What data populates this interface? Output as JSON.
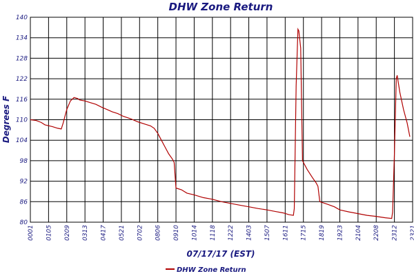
{
  "chart_data": {
    "type": "line",
    "title": "DHW Zone Return",
    "xlabel": "07/17/17 (EST)",
    "ylabel": "Degrees F",
    "ylim": [
      80,
      140
    ],
    "y_ticks": [
      80,
      86,
      92,
      98,
      104,
      110,
      116,
      122,
      128,
      134,
      140
    ],
    "x_tick_labels": [
      "0001",
      "0105",
      "0209",
      "0313",
      "0417",
      "0521",
      "0702",
      "0806",
      "0910",
      "1014",
      "1118",
      "1222",
      "1403",
      "1507",
      "1611",
      "1715",
      "1819",
      "1923",
      "2104",
      "2208",
      "2312",
      "2321"
    ],
    "grid": true,
    "legend_position": "bottom-center",
    "colors": {
      "series": "#b00000",
      "text": "#1a1a80",
      "grid": "#000000"
    },
    "series": [
      {
        "name": "DHW Zone Return",
        "points": [
          [
            0.0,
            110.0
          ],
          [
            0.3,
            109.8
          ],
          [
            0.6,
            109.2
          ],
          [
            0.8,
            108.5
          ],
          [
            1.2,
            108.0
          ],
          [
            1.5,
            107.5
          ],
          [
            1.7,
            107.3
          ],
          [
            1.8,
            109.0
          ],
          [
            1.9,
            111.0
          ],
          [
            2.0,
            113.0
          ],
          [
            2.2,
            115.5
          ],
          [
            2.4,
            116.5
          ],
          [
            2.6,
            116.2
          ],
          [
            2.7,
            115.8
          ],
          [
            3.0,
            115.5
          ],
          [
            3.3,
            115.0
          ],
          [
            3.6,
            114.5
          ],
          [
            3.9,
            113.7
          ],
          [
            4.2,
            113.0
          ],
          [
            4.5,
            112.3
          ],
          [
            4.8,
            111.8
          ],
          [
            5.1,
            111.0
          ],
          [
            5.5,
            110.3
          ],
          [
            5.9,
            109.4
          ],
          [
            6.3,
            108.7
          ],
          [
            6.6,
            108.2
          ],
          [
            6.8,
            107.5
          ],
          [
            7.0,
            106.0
          ],
          [
            7.2,
            104.0
          ],
          [
            7.4,
            102.0
          ],
          [
            7.6,
            100.0
          ],
          [
            7.8,
            98.5
          ],
          [
            7.9,
            97.5
          ],
          [
            8.0,
            90.0
          ],
          [
            8.3,
            89.5
          ],
          [
            8.6,
            88.5
          ],
          [
            9.0,
            88.0
          ],
          [
            9.5,
            87.2
          ],
          [
            10.0,
            86.7
          ],
          [
            10.5,
            86.0
          ],
          [
            11.0,
            85.5
          ],
          [
            11.5,
            85.0
          ],
          [
            12.0,
            84.5
          ],
          [
            12.5,
            84.0
          ],
          [
            13.0,
            83.6
          ],
          [
            13.5,
            83.1
          ],
          [
            13.9,
            82.7
          ],
          [
            14.2,
            82.2
          ],
          [
            14.45,
            82.0
          ],
          [
            14.5,
            84.0
          ],
          [
            14.6,
            120.0
          ],
          [
            14.7,
            136.5
          ],
          [
            14.75,
            136.0
          ],
          [
            14.85,
            131.0
          ],
          [
            14.95,
            98.0
          ],
          [
            15.2,
            95.5
          ],
          [
            15.5,
            93.0
          ],
          [
            15.7,
            91.5
          ],
          [
            15.8,
            90.5
          ],
          [
            15.9,
            86.0
          ],
          [
            16.3,
            85.3
          ],
          [
            16.7,
            84.5
          ],
          [
            17.0,
            83.6
          ],
          [
            17.5,
            83.0
          ],
          [
            18.0,
            82.5
          ],
          [
            18.5,
            82.0
          ],
          [
            19.0,
            81.7
          ],
          [
            19.5,
            81.3
          ],
          [
            19.85,
            81.1
          ],
          [
            19.9,
            83.0
          ],
          [
            20.0,
            100.0
          ],
          [
            20.1,
            122.0
          ],
          [
            20.15,
            123.0
          ],
          [
            20.3,
            118.0
          ],
          [
            20.5,
            113.0
          ],
          [
            20.7,
            109.0
          ],
          [
            20.85,
            105.0
          ]
        ]
      }
    ]
  }
}
